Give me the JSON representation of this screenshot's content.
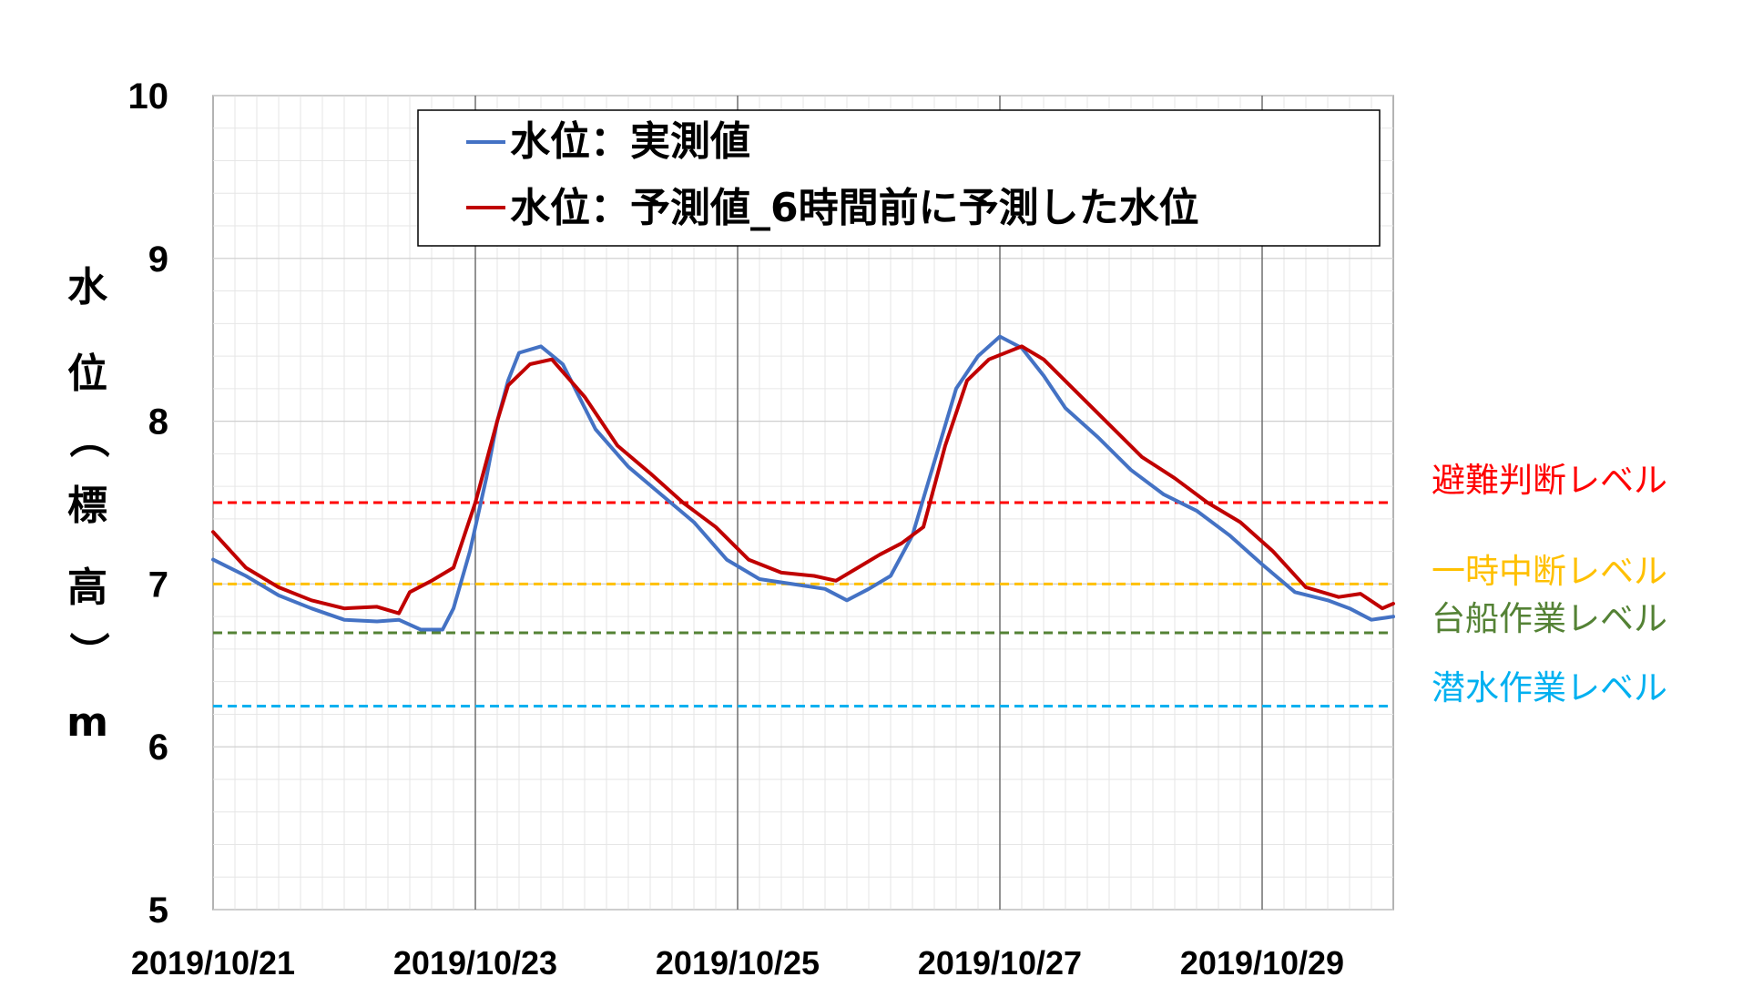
{
  "chart_data": {
    "type": "line",
    "ylabel_chars": [
      "水",
      "位",
      "（",
      "標",
      "高",
      "）",
      "m"
    ],
    "ylim": [
      5,
      10
    ],
    "yticks": [
      5,
      6,
      7,
      8,
      9,
      10
    ],
    "xlim": [
      "2019/10/21 00:00",
      "2019/10/30 00:00"
    ],
    "xticks": [
      "2019/10/21",
      "2019/10/23",
      "2019/10/25",
      "2019/10/27",
      "2019/10/29"
    ],
    "grid": true,
    "legend_position": "top-center",
    "series": [
      {
        "name": "水位：実測値",
        "color": "#4472C4",
        "points": [
          [
            "2019/10/21 00:00",
            7.15
          ],
          [
            "2019/10/21 06:00",
            7.05
          ],
          [
            "2019/10/21 12:00",
            6.93
          ],
          [
            "2019/10/21 18:00",
            6.85
          ],
          [
            "2019/10/22 00:00",
            6.78
          ],
          [
            "2019/10/22 06:00",
            6.77
          ],
          [
            "2019/10/22 10:00",
            6.78
          ],
          [
            "2019/10/22 14:00",
            6.72
          ],
          [
            "2019/10/22 18:00",
            6.72
          ],
          [
            "2019/10/22 20:00",
            6.85
          ],
          [
            "2019/10/22 23:00",
            7.2
          ],
          [
            "2019/10/23 02:00",
            7.65
          ],
          [
            "2019/10/23 04:00",
            8.0
          ],
          [
            "2019/10/23 06:00",
            8.25
          ],
          [
            "2019/10/23 08:00",
            8.42
          ],
          [
            "2019/10/23 12:00",
            8.46
          ],
          [
            "2019/10/23 16:00",
            8.35
          ],
          [
            "2019/10/23 22:00",
            7.95
          ],
          [
            "2019/10/24 04:00",
            7.72
          ],
          [
            "2019/10/24 10:00",
            7.55
          ],
          [
            "2019/10/24 16:00",
            7.38
          ],
          [
            "2019/10/24 22:00",
            7.15
          ],
          [
            "2019/10/25 04:00",
            7.03
          ],
          [
            "2019/10/25 10:00",
            7.0
          ],
          [
            "2019/10/25 16:00",
            6.97
          ],
          [
            "2019/10/25 20:00",
            6.9
          ],
          [
            "2019/10/26 00:00",
            6.97
          ],
          [
            "2019/10/26 04:00",
            7.05
          ],
          [
            "2019/10/26 08:00",
            7.3
          ],
          [
            "2019/10/26 12:00",
            7.75
          ],
          [
            "2019/10/26 16:00",
            8.2
          ],
          [
            "2019/10/26 20:00",
            8.4
          ],
          [
            "2019/10/27 00:00",
            8.52
          ],
          [
            "2019/10/27 04:00",
            8.45
          ],
          [
            "2019/10/27 08:00",
            8.28
          ],
          [
            "2019/10/27 12:00",
            8.08
          ],
          [
            "2019/10/27 18:00",
            7.9
          ],
          [
            "2019/10/28 00:00",
            7.7
          ],
          [
            "2019/10/28 06:00",
            7.55
          ],
          [
            "2019/10/28 12:00",
            7.45
          ],
          [
            "2019/10/28 18:00",
            7.3
          ],
          [
            "2019/10/29 00:00",
            7.12
          ],
          [
            "2019/10/29 06:00",
            6.95
          ],
          [
            "2019/10/29 12:00",
            6.9
          ],
          [
            "2019/10/29 16:00",
            6.85
          ],
          [
            "2019/10/29 20:00",
            6.78
          ],
          [
            "2019/10/30 00:00",
            6.8
          ]
        ]
      },
      {
        "name": "水位：予測値_6時間前に予測した水位",
        "color": "#C00000",
        "points": [
          [
            "2019/10/21 00:00",
            7.32
          ],
          [
            "2019/10/21 06:00",
            7.1
          ],
          [
            "2019/10/21 12:00",
            6.98
          ],
          [
            "2019/10/21 18:00",
            6.9
          ],
          [
            "2019/10/22 00:00",
            6.85
          ],
          [
            "2019/10/22 06:00",
            6.86
          ],
          [
            "2019/10/22 10:00",
            6.82
          ],
          [
            "2019/10/22 12:00",
            6.95
          ],
          [
            "2019/10/22 16:00",
            7.02
          ],
          [
            "2019/10/22 20:00",
            7.1
          ],
          [
            "2019/10/23 00:00",
            7.5
          ],
          [
            "2019/10/23 04:00",
            8.0
          ],
          [
            "2019/10/23 06:00",
            8.22
          ],
          [
            "2019/10/23 10:00",
            8.35
          ],
          [
            "2019/10/23 14:00",
            8.38
          ],
          [
            "2019/10/23 20:00",
            8.15
          ],
          [
            "2019/10/24 02:00",
            7.85
          ],
          [
            "2019/10/24 08:00",
            7.68
          ],
          [
            "2019/10/24 14:00",
            7.5
          ],
          [
            "2019/10/24 20:00",
            7.35
          ],
          [
            "2019/10/25 02:00",
            7.15
          ],
          [
            "2019/10/25 08:00",
            7.07
          ],
          [
            "2019/10/25 14:00",
            7.05
          ],
          [
            "2019/10/25 18:00",
            7.02
          ],
          [
            "2019/10/25 22:00",
            7.1
          ],
          [
            "2019/10/26 02:00",
            7.18
          ],
          [
            "2019/10/26 06:00",
            7.25
          ],
          [
            "2019/10/26 10:00",
            7.35
          ],
          [
            "2019/10/26 14:00",
            7.85
          ],
          [
            "2019/10/26 18:00",
            8.25
          ],
          [
            "2019/10/26 22:00",
            8.38
          ],
          [
            "2019/10/27 04:00",
            8.46
          ],
          [
            "2019/10/27 08:00",
            8.38
          ],
          [
            "2019/10/27 14:00",
            8.18
          ],
          [
            "2019/10/27 20:00",
            7.98
          ],
          [
            "2019/10/28 02:00",
            7.78
          ],
          [
            "2019/10/28 08:00",
            7.65
          ],
          [
            "2019/10/28 14:00",
            7.5
          ],
          [
            "2019/10/28 20:00",
            7.38
          ],
          [
            "2019/10/29 02:00",
            7.2
          ],
          [
            "2019/10/29 08:00",
            6.98
          ],
          [
            "2019/10/29 14:00",
            6.92
          ],
          [
            "2019/10/29 18:00",
            6.94
          ],
          [
            "2019/10/29 22:00",
            6.85
          ],
          [
            "2019/10/30 00:00",
            6.88
          ]
        ]
      }
    ],
    "reference_lines": [
      {
        "label": "避難判断レベル",
        "value": 7.5,
        "color": "#FF0000"
      },
      {
        "label": "一時中断レベル",
        "value": 7.0,
        "color": "#FFC000"
      },
      {
        "label": "台船作業レベル",
        "value": 6.7,
        "color": "#548235"
      },
      {
        "label": "潜水作業レベル",
        "value": 6.25,
        "color": "#00B0F0"
      }
    ]
  }
}
